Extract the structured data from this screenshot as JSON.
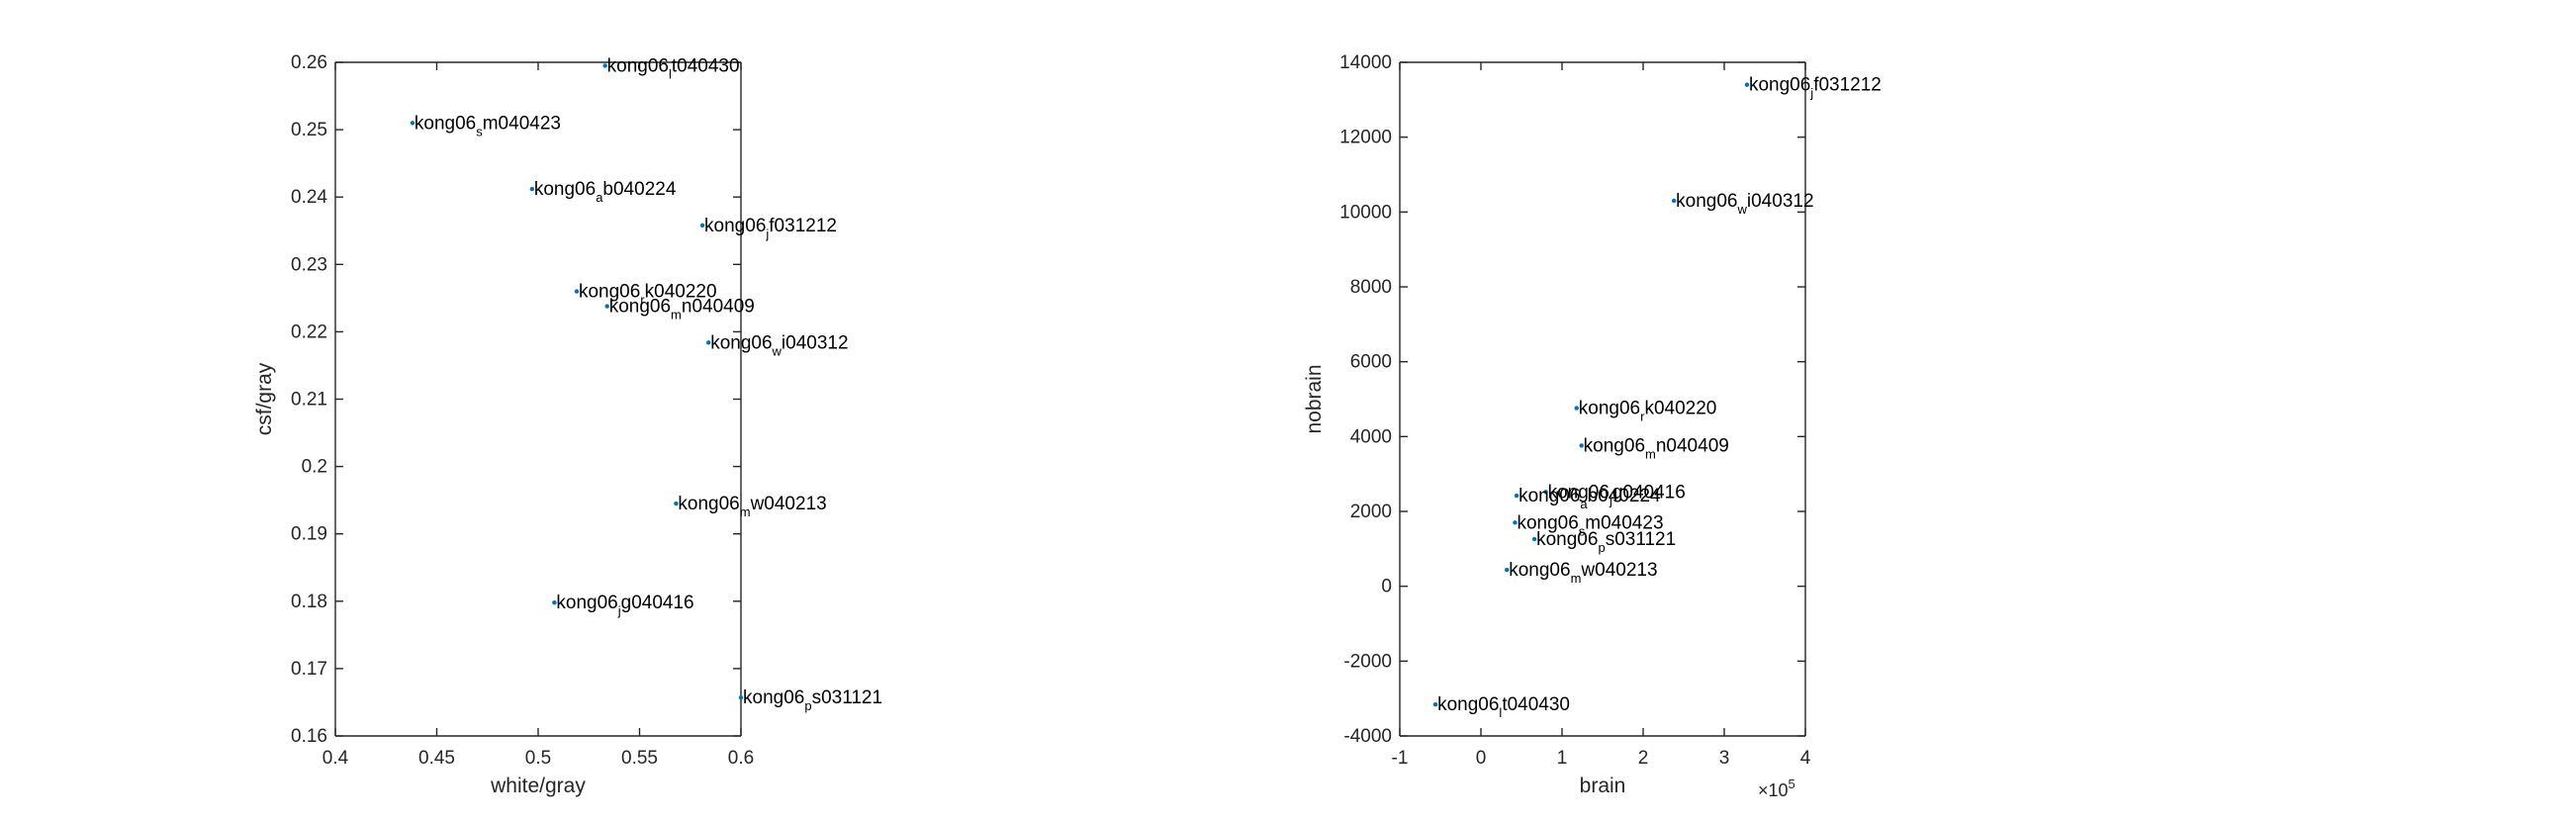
{
  "chart_data": [
    {
      "type": "scatter",
      "xlabel": "white/gray",
      "ylabel": "csf/gray",
      "xlim": [
        0.4,
        0.6
      ],
      "ylim": [
        0.16,
        0.26
      ],
      "xticks": [
        "0.4",
        "0.45",
        "0.5",
        "0.55",
        "0.6"
      ],
      "yticks": [
        "0.16",
        "0.17",
        "0.18",
        "0.19",
        "0.2",
        "0.21",
        "0.22",
        "0.23",
        "0.24",
        "0.25",
        "0.26"
      ],
      "points": [
        {
          "x": 0.533,
          "y": 0.2595,
          "pre": "kong06",
          "sub": "l",
          "post": "t040430"
        },
        {
          "x": 0.438,
          "y": 0.251,
          "pre": "kong06",
          "sub": "s",
          "post": "m040423"
        },
        {
          "x": 0.497,
          "y": 0.2412,
          "pre": "kong06",
          "sub": "a",
          "post": "b040224"
        },
        {
          "x": 0.581,
          "y": 0.2358,
          "pre": "kong06",
          "sub": "j",
          "post": "f031212"
        },
        {
          "x": 0.519,
          "y": 0.226,
          "pre": "kong06",
          "sub": "r",
          "post": "k040220"
        },
        {
          "x": 0.534,
          "y": 0.2238,
          "pre": "kong06",
          "sub": "m",
          "post": "n040409"
        },
        {
          "x": 0.584,
          "y": 0.2184,
          "pre": "kong06",
          "sub": "w",
          "post": "i040312"
        },
        {
          "x": 0.568,
          "y": 0.1945,
          "pre": "kong06",
          "sub": "m",
          "post": "w040213"
        },
        {
          "x": 0.508,
          "y": 0.1798,
          "pre": "kong06",
          "sub": "j",
          "post": "g040416"
        },
        {
          "x": 0.6,
          "y": 0.1657,
          "pre": "kong06",
          "sub": "p",
          "post": "s031121"
        }
      ]
    },
    {
      "type": "scatter",
      "xlabel": "brain",
      "ylabel": "nobrain",
      "xlim": [
        -1,
        4
      ],
      "ylim": [
        -4000,
        14000
      ],
      "x_exponent": "×10",
      "x_exponent_power": "5",
      "xticks": [
        "-1",
        "0",
        "1",
        "2",
        "3",
        "4"
      ],
      "yticks": [
        "-4000",
        "-2000",
        "0",
        "2000",
        "4000",
        "6000",
        "8000",
        "10000",
        "12000",
        "14000"
      ],
      "points": [
        {
          "x": 3.28,
          "y": 13400,
          "pre": "kong06",
          "sub": "j",
          "post": "f031212"
        },
        {
          "x": 2.38,
          "y": 10300,
          "pre": "kong06",
          "sub": "w",
          "post": "i040312"
        },
        {
          "x": 1.18,
          "y": 4760,
          "pre": "kong06",
          "sub": "r",
          "post": "k040220"
        },
        {
          "x": 1.24,
          "y": 3760,
          "pre": "kong06",
          "sub": "m",
          "post": "n040409"
        },
        {
          "x": 0.8,
          "y": 2520,
          "pre": "kong06",
          "sub": "j",
          "post": "g040416"
        },
        {
          "x": 0.44,
          "y": 2420,
          "pre": "kong06",
          "sub": "a",
          "post": "b040224"
        },
        {
          "x": 0.42,
          "y": 1700,
          "pre": "kong06",
          "sub": "s",
          "post": "m040423"
        },
        {
          "x": 0.66,
          "y": 1260,
          "pre": "kong06",
          "sub": "p",
          "post": "s031121"
        },
        {
          "x": 0.32,
          "y": 440,
          "pre": "kong06",
          "sub": "m",
          "post": "w040213"
        },
        {
          "x": -0.56,
          "y": -3160,
          "pre": "kong06",
          "sub": "l",
          "post": "t040430"
        }
      ]
    }
  ]
}
